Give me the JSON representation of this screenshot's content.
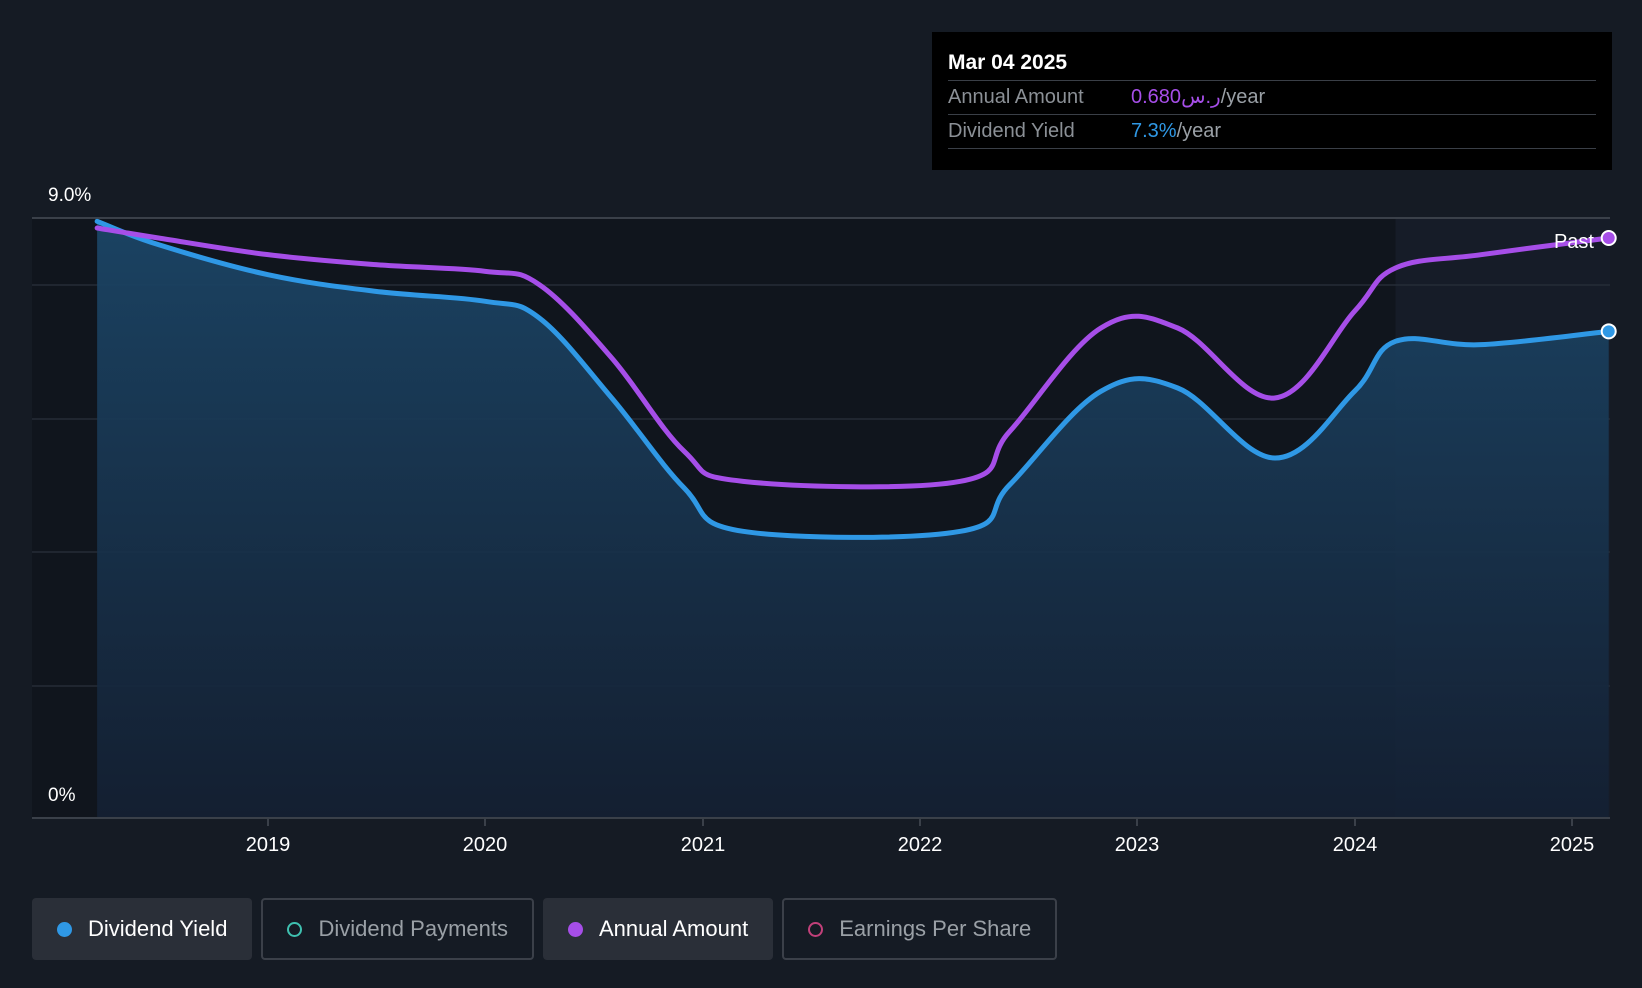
{
  "tooltip": {
    "date": "Mar 04 2025",
    "rows": [
      {
        "label": "Annual Amount",
        "value": "0.680ر.س",
        "unit": "/year"
      },
      {
        "label": "Dividend Yield",
        "value": "7.3%",
        "unit": "/year"
      }
    ]
  },
  "legend": [
    {
      "label": "Dividend Yield",
      "color": "#2f98e5",
      "active": true
    },
    {
      "label": "Dividend Payments",
      "color": "#3fc1b0",
      "active": false
    },
    {
      "label": "Annual Amount",
      "color": "#a64ee8",
      "active": true
    },
    {
      "label": "Earnings Per Share",
      "color": "#c2407a",
      "active": false
    }
  ],
  "past_label": "Past",
  "colors": {
    "background": "#151b24",
    "dividend_yield": "#2f98e5",
    "annual_amount": "#a64ee8"
  },
  "chart_data": {
    "type": "line",
    "ylim": [
      0,
      9.0
    ],
    "y_tick_labels": [
      "9.0%",
      "0%"
    ],
    "x_tick_labels": [
      "2019",
      "2020",
      "2021",
      "2022",
      "2023",
      "2024",
      "2025"
    ],
    "grid": true,
    "series": [
      {
        "name": "Dividend Yield",
        "color": "#2f98e5",
        "area": true,
        "points": [
          [
            "2018-03-20",
            8.95
          ],
          [
            "2018-07-01",
            8.6
          ],
          [
            "2019-01-01",
            8.15
          ],
          [
            "2019-07-01",
            7.9
          ],
          [
            "2020-01-01",
            7.75
          ],
          [
            "2020-04-01",
            7.5
          ],
          [
            "2020-08-01",
            6.3
          ],
          [
            "2020-12-01",
            4.95
          ],
          [
            "2021-03-10",
            4.3
          ],
          [
            "2022-03-10",
            4.3
          ],
          [
            "2022-06-01",
            5.0
          ],
          [
            "2022-11-01",
            6.4
          ],
          [
            "2023-03-10",
            6.45
          ],
          [
            "2023-08-20",
            5.4
          ],
          [
            "2024-01-01",
            6.4
          ],
          [
            "2024-03-10",
            7.15
          ],
          [
            "2024-08-01",
            7.1
          ],
          [
            "2025-03-04",
            7.3
          ]
        ]
      },
      {
        "name": "Annual Amount",
        "color": "#a64ee8",
        "area": false,
        "points": [
          [
            "2018-03-20",
            8.85
          ],
          [
            "2018-07-01",
            8.7
          ],
          [
            "2019-01-01",
            8.45
          ],
          [
            "2019-07-01",
            8.3
          ],
          [
            "2020-01-01",
            8.2
          ],
          [
            "2020-04-01",
            8.0
          ],
          [
            "2020-08-01",
            6.9
          ],
          [
            "2020-12-01",
            5.5
          ],
          [
            "2021-03-10",
            5.05
          ],
          [
            "2022-03-10",
            5.05
          ],
          [
            "2022-06-01",
            5.8
          ],
          [
            "2022-11-01",
            7.35
          ],
          [
            "2023-03-10",
            7.35
          ],
          [
            "2023-08-20",
            6.3
          ],
          [
            "2024-01-01",
            7.6
          ],
          [
            "2024-03-10",
            8.25
          ],
          [
            "2024-08-01",
            8.45
          ],
          [
            "2025-03-04",
            8.7
          ]
        ]
      }
    ],
    "past_region_start": "2024-03-10"
  }
}
